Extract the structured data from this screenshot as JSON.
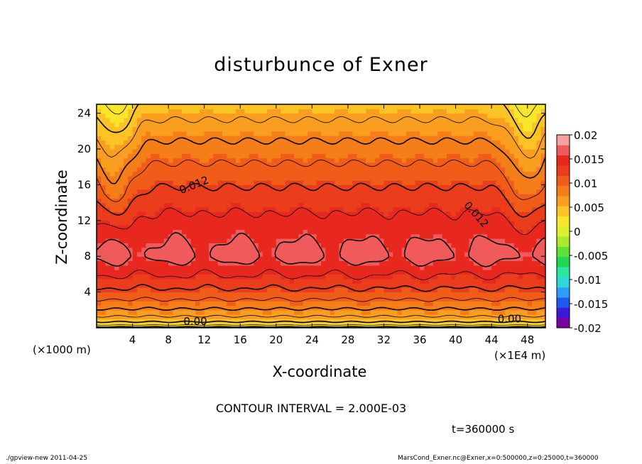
{
  "chart_data": {
    "type": "heatmap",
    "title": "disturbunce of Exner",
    "xlabel": "X-coordinate",
    "ylabel": "Z-coordinate",
    "x_unit_label": "(×1000 m)",
    "x_scale_label": "(×1E4 m)",
    "xlim": [
      0,
      50
    ],
    "ylim": [
      0,
      25
    ],
    "x_ticks": [
      "4",
      "8",
      "12",
      "16",
      "20",
      "24",
      "28",
      "32",
      "36",
      "40",
      "44",
      "48"
    ],
    "y_ticks": [
      "4",
      "8",
      "12",
      "16",
      "20",
      "24"
    ],
    "colorbar": {
      "ticks": [
        "0.02",
        "0.015",
        "0.01",
        "0.005",
        "0",
        "-0.005",
        "-0.01",
        "-0.015",
        "-0.02"
      ],
      "range": [
        -0.02,
        0.02
      ],
      "colors": [
        "#7a00a0",
        "#3c18d8",
        "#1e58f0",
        "#2f9cf6",
        "#2fd8d8",
        "#28e8a0",
        "#20d850",
        "#62e03a",
        "#a8ea2e",
        "#ddf02e",
        "#f8e62a",
        "#fbc424",
        "#f99e1e",
        "#f57e18",
        "#f15c18",
        "#eb3c1c",
        "#e8281e",
        "#f05a5a",
        "#f7a0a0"
      ]
    },
    "contour_labels": [
      "0.012",
      "0.012",
      "0.00",
      "0.00"
    ],
    "contour_interval": "CONTOUR INTERVAL = 2.000E-03",
    "time": "t=360000 s"
  },
  "footer": {
    "left": "./gpview-new   2011-04-25",
    "right": "MarsCond_Exner.nc@Exner,x=0:500000,z=0:25000,t=360000"
  }
}
